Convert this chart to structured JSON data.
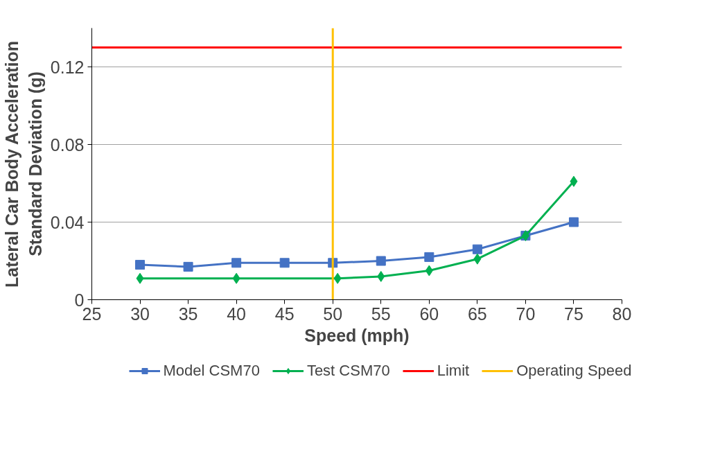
{
  "chart_data": {
    "type": "line",
    "xlabel": "Speed (mph)",
    "ylabel": "Lateral Car Body Acceleration\nStandard Deviation (g)",
    "xlim": [
      25,
      80
    ],
    "xticks": [
      25,
      30,
      35,
      40,
      45,
      50,
      55,
      60,
      65,
      70,
      75,
      80
    ],
    "ylim": [
      0,
      0.14
    ],
    "yticks": [
      0,
      0.04,
      0.08,
      0.12
    ],
    "grid": "y",
    "legend": "bottom",
    "series": [
      {
        "name": "Model CSM70",
        "color": "#4472c4",
        "marker": "square",
        "x": [
          30,
          35,
          40,
          45,
          50,
          55,
          60,
          65,
          70,
          75
        ],
        "values": [
          0.018,
          0.017,
          0.019,
          0.019,
          0.019,
          0.02,
          0.022,
          0.026,
          0.033,
          0.04
        ]
      },
      {
        "name": "Test CSM70",
        "color": "#00b050",
        "marker": "diamond",
        "x": [
          30,
          40,
          50.5,
          55,
          60,
          65,
          70,
          75
        ],
        "values": [
          0.011,
          0.011,
          0.011,
          0.012,
          0.015,
          0.021,
          0.033,
          0.061
        ]
      }
    ],
    "ref_lines": [
      {
        "axis": "y",
        "value": 0.13,
        "label": "Limit",
        "color": "#ff0000"
      },
      {
        "axis": "x",
        "value": 50,
        "label": "Operating Speed",
        "color": "#ffc000"
      }
    ]
  }
}
